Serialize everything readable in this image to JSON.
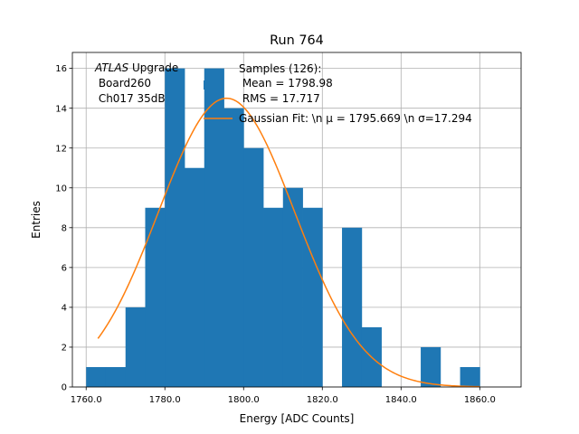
{
  "chart_data": {
    "type": "bar",
    "title": "Run 764",
    "xlabel": "Energy [ADC Counts]",
    "ylabel": "Entries",
    "xlim": [
      1756.5,
      1870.5
    ],
    "ylim": [
      0,
      16.8
    ],
    "xticks": [
      1760,
      1780,
      1800,
      1820,
      1840,
      1860
    ],
    "xtick_labels": [
      "1760.0",
      "1780.0",
      "1800.0",
      "1820.0",
      "1840.0",
      "1860.0"
    ],
    "yticks": [
      0,
      2,
      4,
      6,
      8,
      10,
      12,
      14,
      16
    ],
    "ytick_labels": [
      "0",
      "2",
      "4",
      "6",
      "8",
      "10",
      "12",
      "14",
      "16"
    ],
    "grid": true,
    "bin_width": 5,
    "bins": [
      1760,
      1765,
      1770,
      1775,
      1780,
      1785,
      1790,
      1795,
      1800,
      1805,
      1810,
      1815,
      1820,
      1825,
      1830,
      1835,
      1840,
      1845,
      1850,
      1855
    ],
    "values": [
      1,
      1,
      4,
      9,
      16,
      11,
      16,
      14,
      12,
      9,
      10,
      9,
      0,
      8,
      3,
      0,
      0,
      2,
      0,
      1
    ],
    "fit": {
      "type": "gaussian",
      "mu": 1795.669,
      "sigma": 17.294,
      "amplitude": 14.5,
      "x_range": [
        1763,
        1860
      ]
    },
    "histogram_color": "#1f77b4",
    "fit_color": "#ff7f0e",
    "annotation": {
      "italic": "ATLAS",
      "rest": " Upgrade",
      "line2": " Board260",
      "line3": " Ch017 35dB"
    },
    "legend": {
      "location": "upper-right",
      "samples_lines": [
        "Samples (126):",
        " Mean = 1798.98",
        " RMS = 17.717"
      ],
      "fit_label": "Gaussian Fit: \\n μ = 1795.669 \\n σ=17.294"
    }
  }
}
